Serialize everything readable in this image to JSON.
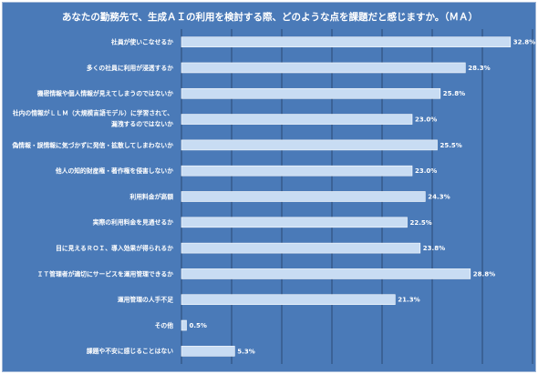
{
  "chart_data": {
    "type": "bar",
    "orientation": "horizontal",
    "title": "あなたの勤務先で、生成ＡＩの利用を検討する際、どのような点を課題だと感じますか。（ＭＡ）",
    "categories": [
      "社員が使いこなせるか",
      "多くの社員に利用が浸透するか",
      "機密情報や個人情報が見えてしまうのではないか",
      [
        "社内の情報がＬＬＭ（大規模言語モデル）に学習されて、",
        "漏洩するのではないか"
      ],
      "偽情報・誤情報に気づかずに発信・拡散してしまわないか",
      "他人の知的財産権・著作権を侵害しないか",
      "利用料金が高額",
      "実際の利用料金を見通せるか",
      "目に見えるＲＯＩ、導入効果が得られるか",
      "ＩＴ管理者が適切にサービスを運用管理できるか",
      "運用管理の人手不足",
      "その他",
      "課題や不安に感じることはない"
    ],
    "values": [
      32.8,
      28.3,
      25.8,
      23.0,
      25.5,
      23.0,
      24.3,
      22.5,
      23.8,
      28.8,
      21.3,
      0.5,
      5.3
    ],
    "value_labels": [
      "32.8%",
      "28.3%",
      "25.8%",
      "23.0%",
      "25.5%",
      "23.0%",
      "24.3%",
      "22.5%",
      "23.8%",
      "28.8%",
      "21.3%",
      "0.5%",
      "5.3%"
    ],
    "xlim": [
      0,
      35
    ],
    "grid": true,
    "colors": {
      "background": "#4a7ab8",
      "bar": "#c8dcf3",
      "bar_edge": "#ffffff",
      "grid": "#253f63",
      "text": "#ffffff"
    }
  }
}
